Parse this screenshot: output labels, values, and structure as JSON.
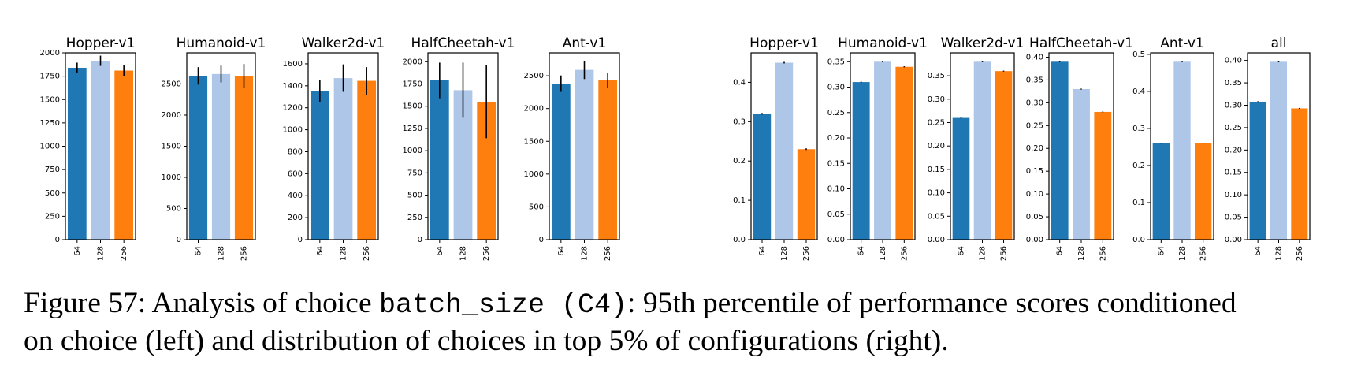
{
  "colors": {
    "c64": "#1f77b4",
    "c128": "#aec7e8",
    "c256": "#ff7f0e"
  },
  "chart_data": [
    {
      "type": "bar",
      "group": "left",
      "title": "Hopper-v1",
      "categories": [
        "64",
        "128",
        "256"
      ],
      "values": [
        1840,
        1915,
        1810
      ],
      "errors": [
        55,
        55,
        55
      ],
      "ylim": [
        0,
        2000
      ],
      "yticks": [
        0,
        250,
        500,
        750,
        1000,
        1250,
        1500,
        1750,
        2000
      ]
    },
    {
      "type": "bar",
      "group": "left",
      "title": "Humanoid-v1",
      "categories": [
        "64",
        "128",
        "256"
      ],
      "values": [
        2630,
        2660,
        2630
      ],
      "errors": [
        140,
        135,
        190
      ],
      "ylim": [
        0,
        3000
      ],
      "yticks": [
        0,
        500,
        1000,
        1500,
        2000,
        2500
      ]
    },
    {
      "type": "bar",
      "group": "left",
      "title": "Walker2d-v1",
      "categories": [
        "64",
        "128",
        "256"
      ],
      "values": [
        1355,
        1470,
        1445
      ],
      "errors": [
        100,
        125,
        125
      ],
      "ylim": [
        0,
        1700
      ],
      "yticks": [
        0,
        200,
        400,
        600,
        800,
        1000,
        1200,
        1400,
        1600
      ]
    },
    {
      "type": "bar",
      "group": "left",
      "title": "HalfCheetah-v1",
      "categories": [
        "64",
        "128",
        "256"
      ],
      "values": [
        1790,
        1680,
        1550
      ],
      "errors": [
        200,
        310,
        410
      ],
      "ylim": [
        0,
        2100
      ],
      "yticks": [
        0,
        250,
        500,
        750,
        1000,
        1250,
        1500,
        1750,
        2000
      ]
    },
    {
      "type": "bar",
      "group": "left",
      "title": "Ant-v1",
      "categories": [
        "64",
        "128",
        "256"
      ],
      "values": [
        2380,
        2590,
        2430
      ],
      "errors": [
        125,
        140,
        110
      ],
      "ylim": [
        0,
        2850
      ],
      "yticks": [
        0,
        500,
        1000,
        1500,
        2000,
        2500
      ]
    },
    {
      "type": "bar",
      "group": "right",
      "title": "Hopper-v1",
      "categories": [
        "64",
        "128",
        "256"
      ],
      "values": [
        0.32,
        0.45,
        0.23
      ],
      "errors": [
        0.002,
        0.002,
        0.002
      ],
      "ylim": [
        0,
        0.475
      ],
      "yticks": [
        "0.0",
        "0.1",
        "0.2",
        "0.3",
        "0.4"
      ]
    },
    {
      "type": "bar",
      "group": "right",
      "title": "Humanoid-v1",
      "categories": [
        "64",
        "128",
        "256"
      ],
      "values": [
        0.31,
        0.35,
        0.34
      ],
      "errors": [
        0.001,
        0.001,
        0.001
      ],
      "ylim": [
        0,
        0.3675
      ],
      "yticks": [
        "0.00",
        "0.05",
        "0.10",
        "0.15",
        "0.20",
        "0.25",
        "0.30",
        "0.35"
      ]
    },
    {
      "type": "bar",
      "group": "right",
      "title": "Walker2d-v1",
      "categories": [
        "64",
        "128",
        "256"
      ],
      "values": [
        0.26,
        0.38,
        0.36
      ],
      "errors": [
        0.001,
        0.001,
        0.001
      ],
      "ylim": [
        0,
        0.399
      ],
      "yticks": [
        "0.00",
        "0.05",
        "0.10",
        "0.15",
        "0.20",
        "0.25",
        "0.30",
        "0.35"
      ]
    },
    {
      "type": "bar",
      "group": "right",
      "title": "HalfCheetah-v1",
      "categories": [
        "64",
        "128",
        "256"
      ],
      "values": [
        0.39,
        0.33,
        0.28
      ],
      "errors": [
        0.001,
        0.001,
        0.001
      ],
      "ylim": [
        0,
        0.4095
      ],
      "yticks": [
        "0.00",
        "0.05",
        "0.10",
        "0.15",
        "0.20",
        "0.25",
        "0.30",
        "0.35",
        "0.40"
      ]
    },
    {
      "type": "bar",
      "group": "right",
      "title": "Ant-v1",
      "categories": [
        "64",
        "128",
        "256"
      ],
      "values": [
        0.26,
        0.48,
        0.26
      ],
      "errors": [
        0.001,
        0.001,
        0.001
      ],
      "ylim": [
        0,
        0.504
      ],
      "yticks": [
        "0.0",
        "0.1",
        "0.2",
        "0.3",
        "0.4",
        "0.5"
      ]
    },
    {
      "type": "bar",
      "group": "right",
      "title": "all",
      "categories": [
        "64",
        "128",
        "256"
      ],
      "values": [
        0.308,
        0.397,
        0.293
      ],
      "errors": [
        0.001,
        0.001,
        0.001
      ],
      "ylim": [
        0,
        0.417
      ],
      "yticks": [
        "0.00",
        "0.05",
        "0.10",
        "0.15",
        "0.20",
        "0.25",
        "0.30",
        "0.35",
        "0.40"
      ]
    }
  ],
  "caption": {
    "before": "Figure 57: Analysis of choice ",
    "code": "batch_size (C4)",
    "after": ": 95th percentile of performance scores conditioned",
    "line2": "on choice (left) and distribution of choices in top 5% of configurations (right)."
  }
}
